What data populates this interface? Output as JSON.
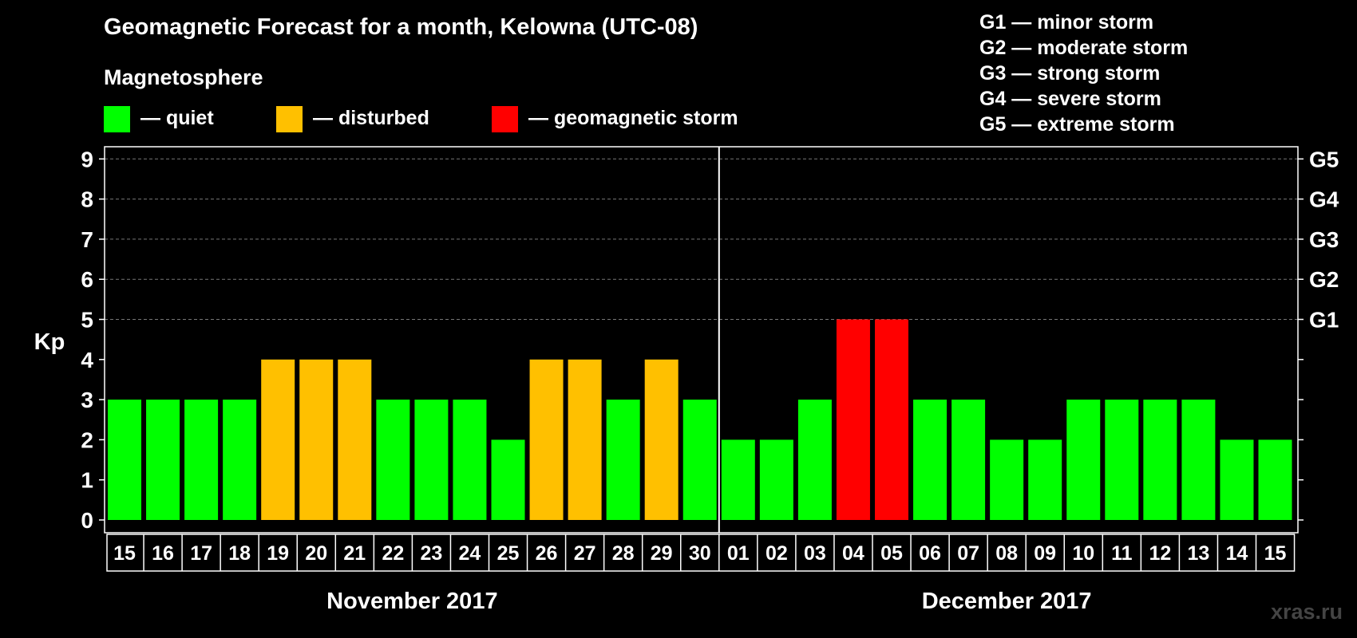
{
  "header": {
    "title": "Geomagnetic Forecast for a month, Kelowna (UTC-08)",
    "legend_title": "Magnetosphere",
    "legend": [
      {
        "label": "— quiet",
        "color": "#00ff00"
      },
      {
        "label": "— disturbed",
        "color": "#ffc000"
      },
      {
        "label": "— geomagnetic storm",
        "color": "#ff0000"
      }
    ],
    "storm_levels": [
      "G1 — minor storm",
      "G2 — moderate storm",
      "G3 — strong storm",
      "G4 — severe storm",
      "G5 — extreme storm"
    ]
  },
  "watermark": "xras.ru",
  "chart_data": {
    "type": "bar",
    "ylabel": "Kp",
    "ylim": [
      0,
      9
    ],
    "yticks": [
      "0",
      "1",
      "2",
      "3",
      "4",
      "5",
      "6",
      "7",
      "8",
      "9"
    ],
    "right_ticks": [
      {
        "value": 5,
        "label": "G1"
      },
      {
        "value": 6,
        "label": "G2"
      },
      {
        "value": 7,
        "label": "G3"
      },
      {
        "value": 8,
        "label": "G4"
      },
      {
        "value": 9,
        "label": "G5"
      }
    ],
    "grid": "dashed horizontal",
    "categories": [
      "15",
      "16",
      "17",
      "18",
      "19",
      "20",
      "21",
      "22",
      "23",
      "24",
      "25",
      "26",
      "27",
      "28",
      "29",
      "30",
      "01",
      "02",
      "03",
      "04",
      "05",
      "06",
      "07",
      "08",
      "09",
      "10",
      "11",
      "12",
      "13",
      "14",
      "15"
    ],
    "values": [
      3,
      3,
      3,
      3,
      4,
      4,
      4,
      3,
      3,
      3,
      2,
      4,
      4,
      3,
      4,
      3,
      2,
      2,
      3,
      5,
      5,
      3,
      3,
      2,
      2,
      3,
      3,
      3,
      3,
      2,
      2
    ],
    "colors": {
      "quiet": "#00ff00",
      "disturbed": "#ffc000",
      "storm": "#ff0000"
    },
    "months": [
      {
        "label": "November 2017",
        "start": 0,
        "end": 15
      },
      {
        "label": "December 2017",
        "start": 16,
        "end": 30
      }
    ]
  }
}
